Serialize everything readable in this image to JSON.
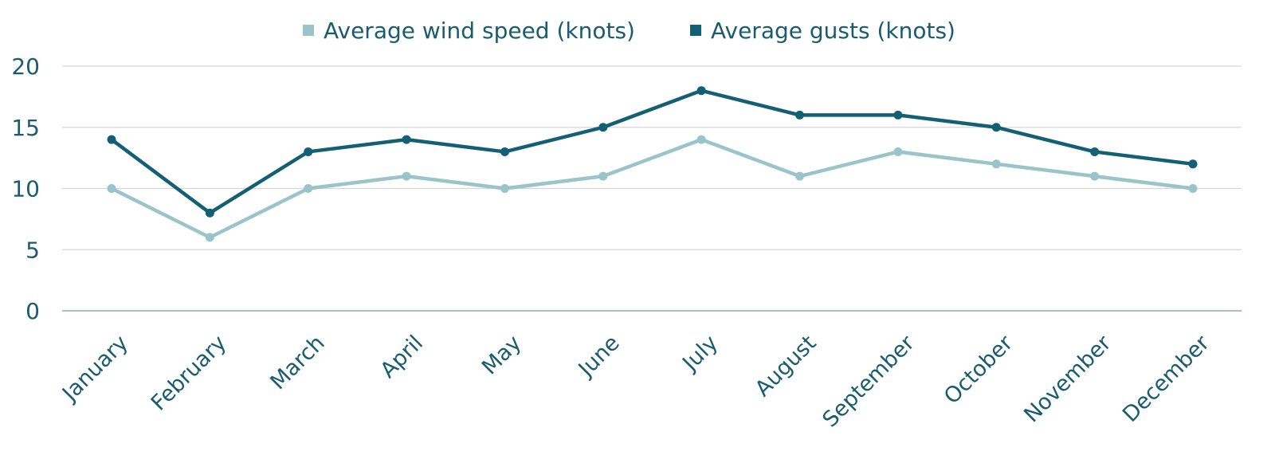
{
  "chart_data": {
    "type": "line",
    "title": "",
    "xlabel": "",
    "ylabel": "",
    "categories": [
      "January",
      "February",
      "March",
      "April",
      "May",
      "June",
      "July",
      "August",
      "September",
      "October",
      "November",
      "December"
    ],
    "series": [
      {
        "name": "Average wind speed (knots)",
        "color": "#99c4c9",
        "values": [
          10,
          6,
          10,
          11,
          10,
          11,
          14,
          11,
          13,
          12,
          11,
          10
        ]
      },
      {
        "name": "Average gusts (knots)",
        "color": "#135f73",
        "values": [
          14,
          8,
          13,
          14,
          13,
          15,
          18,
          16,
          16,
          15,
          13,
          12
        ]
      }
    ],
    "ylim": [
      0,
      20
    ],
    "yticks": [
      0,
      5,
      10,
      15,
      20
    ],
    "grid": true,
    "legend_position": "top-center",
    "text_color": "#1a5c6e",
    "grid_color": "#d6d6d6",
    "axis_color": "#8fa9b0"
  }
}
